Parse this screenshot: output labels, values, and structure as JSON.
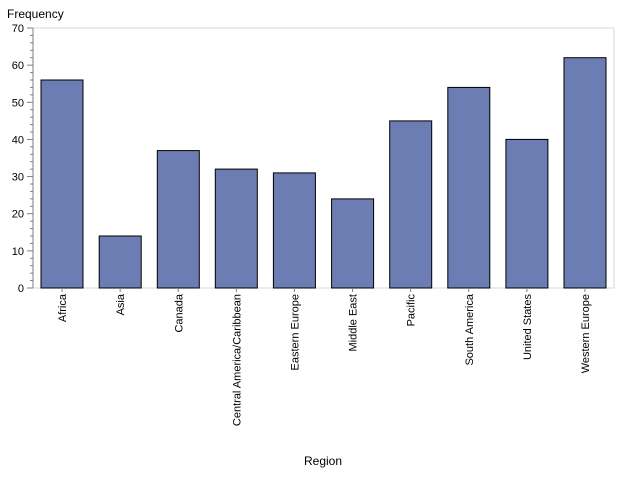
{
  "chart_data": {
    "type": "bar",
    "title": "",
    "xlabel": "Region",
    "ylabel": "Frequency",
    "categories": [
      "Africa",
      "Asia",
      "Canada",
      "Central America/Caribbean",
      "Eastern Europe",
      "Middle East",
      "Pacific",
      "South America",
      "United States",
      "Western Europe"
    ],
    "values": [
      56,
      14,
      37,
      32,
      31,
      24,
      45,
      54,
      40,
      62
    ],
    "ylim": [
      0,
      70
    ],
    "yticks": [
      0,
      10,
      20,
      30,
      40,
      50,
      60,
      70
    ],
    "grid": false,
    "legend": "none",
    "colors": {
      "bar_fill": "#6b7db3",
      "bar_stroke": "#000000",
      "frame": "#d9d9d9",
      "axis": "#808080"
    }
  }
}
